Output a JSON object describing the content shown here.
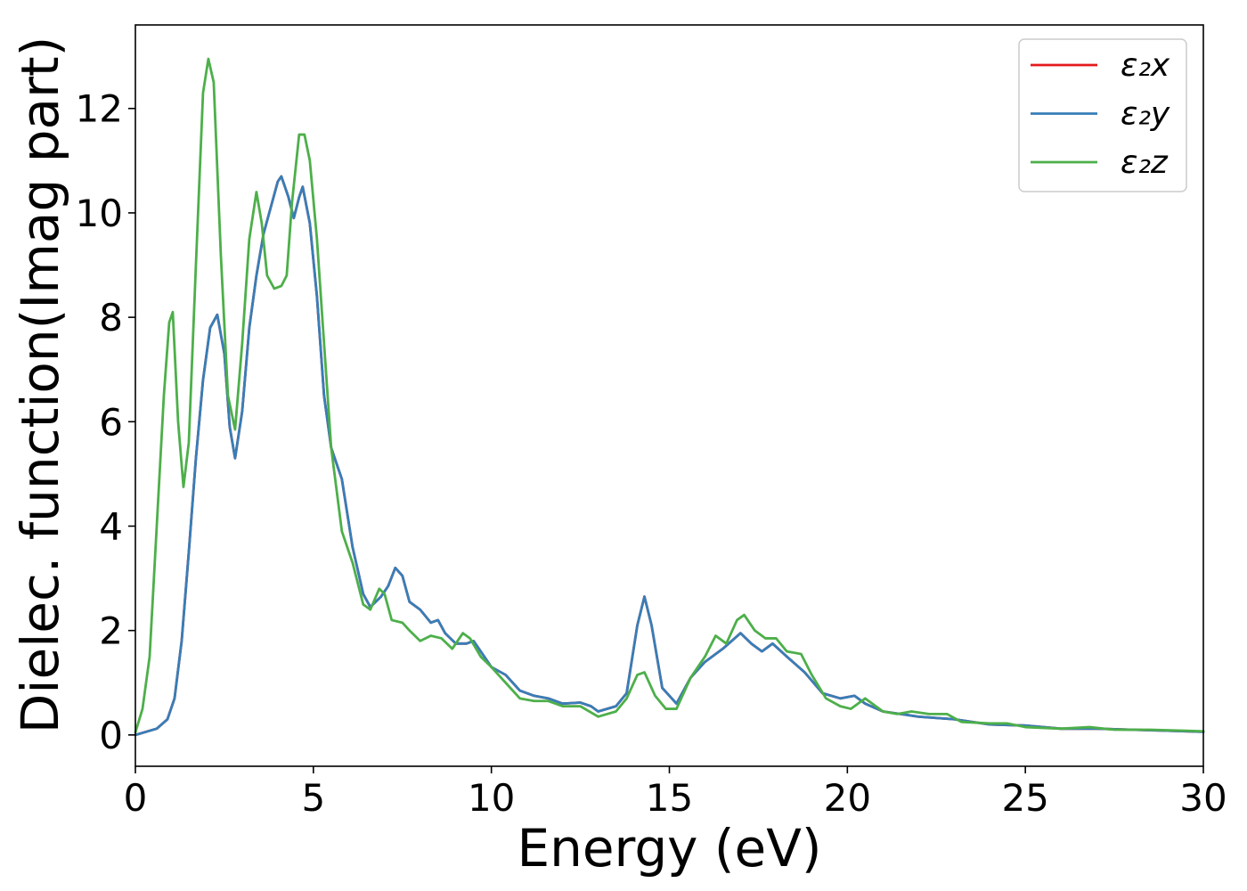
{
  "chart_data": {
    "type": "line",
    "title": "",
    "xlabel": "Energy (eV)",
    "ylabel": "Dielec. function(Imag part)",
    "xlim": [
      0,
      30
    ],
    "ylim": [
      -0.6,
      13.6
    ],
    "xticks": [
      0,
      5,
      10,
      15,
      20,
      25,
      30
    ],
    "yticks": [
      0,
      2,
      4,
      6,
      8,
      10,
      12
    ],
    "grid": false,
    "legend_position": "top-right",
    "series": [
      {
        "name": "ε₂x",
        "color": "#e41a1c",
        "points": [
          [
            0,
            0.0
          ],
          [
            0.3,
            0.06
          ],
          [
            0.6,
            0.12
          ],
          [
            0.9,
            0.3
          ],
          [
            1.1,
            0.7
          ],
          [
            1.3,
            1.8
          ],
          [
            1.5,
            3.5
          ],
          [
            1.7,
            5.3
          ],
          [
            1.9,
            6.8
          ],
          [
            2.1,
            7.8
          ],
          [
            2.3,
            8.05
          ],
          [
            2.5,
            7.3
          ],
          [
            2.65,
            5.9
          ],
          [
            2.8,
            5.3
          ],
          [
            3.0,
            6.2
          ],
          [
            3.2,
            7.8
          ],
          [
            3.4,
            8.8
          ],
          [
            3.6,
            9.6
          ],
          [
            3.8,
            10.1
          ],
          [
            4.0,
            10.6
          ],
          [
            4.1,
            10.7
          ],
          [
            4.3,
            10.3
          ],
          [
            4.45,
            9.9
          ],
          [
            4.6,
            10.3
          ],
          [
            4.7,
            10.5
          ],
          [
            4.9,
            9.8
          ],
          [
            5.1,
            8.4
          ],
          [
            5.3,
            6.5
          ],
          [
            5.5,
            5.5
          ],
          [
            5.8,
            4.9
          ],
          [
            6.1,
            3.6
          ],
          [
            6.4,
            2.7
          ],
          [
            6.6,
            2.45
          ],
          [
            6.9,
            2.65
          ],
          [
            7.1,
            2.85
          ],
          [
            7.3,
            3.2
          ],
          [
            7.5,
            3.05
          ],
          [
            7.7,
            2.55
          ],
          [
            8.0,
            2.4
          ],
          [
            8.3,
            2.15
          ],
          [
            8.5,
            2.2
          ],
          [
            8.7,
            1.95
          ],
          [
            9.0,
            1.75
          ],
          [
            9.3,
            1.75
          ],
          [
            9.5,
            1.8
          ],
          [
            9.7,
            1.6
          ],
          [
            10.0,
            1.3
          ],
          [
            10.4,
            1.15
          ],
          [
            10.8,
            0.85
          ],
          [
            11.2,
            0.75
          ],
          [
            11.6,
            0.7
          ],
          [
            12.0,
            0.6
          ],
          [
            12.5,
            0.62
          ],
          [
            12.8,
            0.55
          ],
          [
            13.0,
            0.45
          ],
          [
            13.5,
            0.55
          ],
          [
            13.8,
            0.8
          ],
          [
            14.1,
            2.1
          ],
          [
            14.3,
            2.65
          ],
          [
            14.5,
            2.1
          ],
          [
            14.8,
            0.9
          ],
          [
            15.2,
            0.6
          ],
          [
            15.6,
            1.1
          ],
          [
            16.0,
            1.4
          ],
          [
            16.5,
            1.65
          ],
          [
            17.0,
            1.95
          ],
          [
            17.3,
            1.75
          ],
          [
            17.6,
            1.6
          ],
          [
            17.9,
            1.75
          ],
          [
            18.3,
            1.5
          ],
          [
            18.8,
            1.2
          ],
          [
            19.3,
            0.8
          ],
          [
            19.8,
            0.7
          ],
          [
            20.2,
            0.75
          ],
          [
            20.5,
            0.6
          ],
          [
            21.0,
            0.45
          ],
          [
            22.0,
            0.35
          ],
          [
            23.0,
            0.3
          ],
          [
            24.0,
            0.2
          ],
          [
            25.0,
            0.18
          ],
          [
            26.0,
            0.12
          ],
          [
            27.0,
            0.12
          ],
          [
            28.0,
            0.1
          ],
          [
            29.0,
            0.08
          ],
          [
            30.0,
            0.06
          ]
        ]
      },
      {
        "name": "ε₂y",
        "color": "#377eb8",
        "points": [
          [
            0,
            0.0
          ],
          [
            0.3,
            0.06
          ],
          [
            0.6,
            0.12
          ],
          [
            0.9,
            0.3
          ],
          [
            1.1,
            0.7
          ],
          [
            1.3,
            1.8
          ],
          [
            1.5,
            3.5
          ],
          [
            1.7,
            5.3
          ],
          [
            1.9,
            6.8
          ],
          [
            2.1,
            7.8
          ],
          [
            2.3,
            8.05
          ],
          [
            2.5,
            7.3
          ],
          [
            2.65,
            5.9
          ],
          [
            2.8,
            5.3
          ],
          [
            3.0,
            6.2
          ],
          [
            3.2,
            7.8
          ],
          [
            3.4,
            8.8
          ],
          [
            3.6,
            9.6
          ],
          [
            3.8,
            10.1
          ],
          [
            4.0,
            10.6
          ],
          [
            4.1,
            10.7
          ],
          [
            4.3,
            10.3
          ],
          [
            4.45,
            9.9
          ],
          [
            4.6,
            10.3
          ],
          [
            4.7,
            10.5
          ],
          [
            4.9,
            9.8
          ],
          [
            5.1,
            8.4
          ],
          [
            5.3,
            6.5
          ],
          [
            5.5,
            5.5
          ],
          [
            5.8,
            4.9
          ],
          [
            6.1,
            3.6
          ],
          [
            6.4,
            2.7
          ],
          [
            6.6,
            2.45
          ],
          [
            6.9,
            2.65
          ],
          [
            7.1,
            2.85
          ],
          [
            7.3,
            3.2
          ],
          [
            7.5,
            3.05
          ],
          [
            7.7,
            2.55
          ],
          [
            8.0,
            2.4
          ],
          [
            8.3,
            2.15
          ],
          [
            8.5,
            2.2
          ],
          [
            8.7,
            1.95
          ],
          [
            9.0,
            1.75
          ],
          [
            9.3,
            1.75
          ],
          [
            9.5,
            1.8
          ],
          [
            9.7,
            1.6
          ],
          [
            10.0,
            1.3
          ],
          [
            10.4,
            1.15
          ],
          [
            10.8,
            0.85
          ],
          [
            11.2,
            0.75
          ],
          [
            11.6,
            0.7
          ],
          [
            12.0,
            0.6
          ],
          [
            12.5,
            0.62
          ],
          [
            12.8,
            0.55
          ],
          [
            13.0,
            0.45
          ],
          [
            13.5,
            0.55
          ],
          [
            13.8,
            0.8
          ],
          [
            14.1,
            2.1
          ],
          [
            14.3,
            2.65
          ],
          [
            14.5,
            2.1
          ],
          [
            14.8,
            0.9
          ],
          [
            15.2,
            0.6
          ],
          [
            15.6,
            1.1
          ],
          [
            16.0,
            1.4
          ],
          [
            16.5,
            1.65
          ],
          [
            17.0,
            1.95
          ],
          [
            17.3,
            1.75
          ],
          [
            17.6,
            1.6
          ],
          [
            17.9,
            1.75
          ],
          [
            18.3,
            1.5
          ],
          [
            18.8,
            1.2
          ],
          [
            19.3,
            0.8
          ],
          [
            19.8,
            0.7
          ],
          [
            20.2,
            0.75
          ],
          [
            20.5,
            0.6
          ],
          [
            21.0,
            0.45
          ],
          [
            22.0,
            0.35
          ],
          [
            23.0,
            0.3
          ],
          [
            24.0,
            0.2
          ],
          [
            25.0,
            0.18
          ],
          [
            26.0,
            0.12
          ],
          [
            27.0,
            0.12
          ],
          [
            28.0,
            0.1
          ],
          [
            29.0,
            0.08
          ],
          [
            30.0,
            0.06
          ]
        ]
      },
      {
        "name": "ε₂z",
        "color": "#4daf4a",
        "points": [
          [
            0,
            0.05
          ],
          [
            0.2,
            0.5
          ],
          [
            0.4,
            1.5
          ],
          [
            0.6,
            4.0
          ],
          [
            0.8,
            6.5
          ],
          [
            0.95,
            7.9
          ],
          [
            1.05,
            8.1
          ],
          [
            1.2,
            6.0
          ],
          [
            1.35,
            4.75
          ],
          [
            1.5,
            5.6
          ],
          [
            1.7,
            9.0
          ],
          [
            1.9,
            12.3
          ],
          [
            2.05,
            12.95
          ],
          [
            2.2,
            12.5
          ],
          [
            2.4,
            9.2
          ],
          [
            2.6,
            6.5
          ],
          [
            2.8,
            5.85
          ],
          [
            3.0,
            7.5
          ],
          [
            3.2,
            9.5
          ],
          [
            3.4,
            10.4
          ],
          [
            3.55,
            9.8
          ],
          [
            3.7,
            8.8
          ],
          [
            3.9,
            8.55
          ],
          [
            4.1,
            8.6
          ],
          [
            4.25,
            8.8
          ],
          [
            4.4,
            10.2
          ],
          [
            4.6,
            11.5
          ],
          [
            4.75,
            11.5
          ],
          [
            4.9,
            11.0
          ],
          [
            5.1,
            9.5
          ],
          [
            5.3,
            7.5
          ],
          [
            5.5,
            5.5
          ],
          [
            5.8,
            3.9
          ],
          [
            6.1,
            3.3
          ],
          [
            6.4,
            2.5
          ],
          [
            6.6,
            2.4
          ],
          [
            6.85,
            2.8
          ],
          [
            7.0,
            2.7
          ],
          [
            7.2,
            2.2
          ],
          [
            7.5,
            2.15
          ],
          [
            7.7,
            2.0
          ],
          [
            8.0,
            1.8
          ],
          [
            8.3,
            1.9
          ],
          [
            8.6,
            1.85
          ],
          [
            8.9,
            1.65
          ],
          [
            9.2,
            1.95
          ],
          [
            9.4,
            1.85
          ],
          [
            9.7,
            1.5
          ],
          [
            10.0,
            1.3
          ],
          [
            10.4,
            1.0
          ],
          [
            10.8,
            0.7
          ],
          [
            11.2,
            0.65
          ],
          [
            11.6,
            0.65
          ],
          [
            12.0,
            0.55
          ],
          [
            12.5,
            0.55
          ],
          [
            13.0,
            0.35
          ],
          [
            13.5,
            0.45
          ],
          [
            13.8,
            0.7
          ],
          [
            14.1,
            1.15
          ],
          [
            14.3,
            1.2
          ],
          [
            14.6,
            0.75
          ],
          [
            14.9,
            0.5
          ],
          [
            15.2,
            0.5
          ],
          [
            15.6,
            1.1
          ],
          [
            16.0,
            1.5
          ],
          [
            16.3,
            1.9
          ],
          [
            16.6,
            1.75
          ],
          [
            16.9,
            2.2
          ],
          [
            17.1,
            2.3
          ],
          [
            17.4,
            2.0
          ],
          [
            17.7,
            1.85
          ],
          [
            18.0,
            1.85
          ],
          [
            18.3,
            1.6
          ],
          [
            18.7,
            1.55
          ],
          [
            19.0,
            1.15
          ],
          [
            19.4,
            0.7
          ],
          [
            19.8,
            0.55
          ],
          [
            20.1,
            0.5
          ],
          [
            20.5,
            0.7
          ],
          [
            21.0,
            0.45
          ],
          [
            21.4,
            0.4
          ],
          [
            21.8,
            0.45
          ],
          [
            22.3,
            0.4
          ],
          [
            22.8,
            0.4
          ],
          [
            23.2,
            0.25
          ],
          [
            24.0,
            0.22
          ],
          [
            24.5,
            0.22
          ],
          [
            25.0,
            0.15
          ],
          [
            26.0,
            0.12
          ],
          [
            26.8,
            0.15
          ],
          [
            27.5,
            0.1
          ],
          [
            28.5,
            0.1
          ],
          [
            29.5,
            0.08
          ],
          [
            30.0,
            0.07
          ]
        ]
      }
    ]
  }
}
